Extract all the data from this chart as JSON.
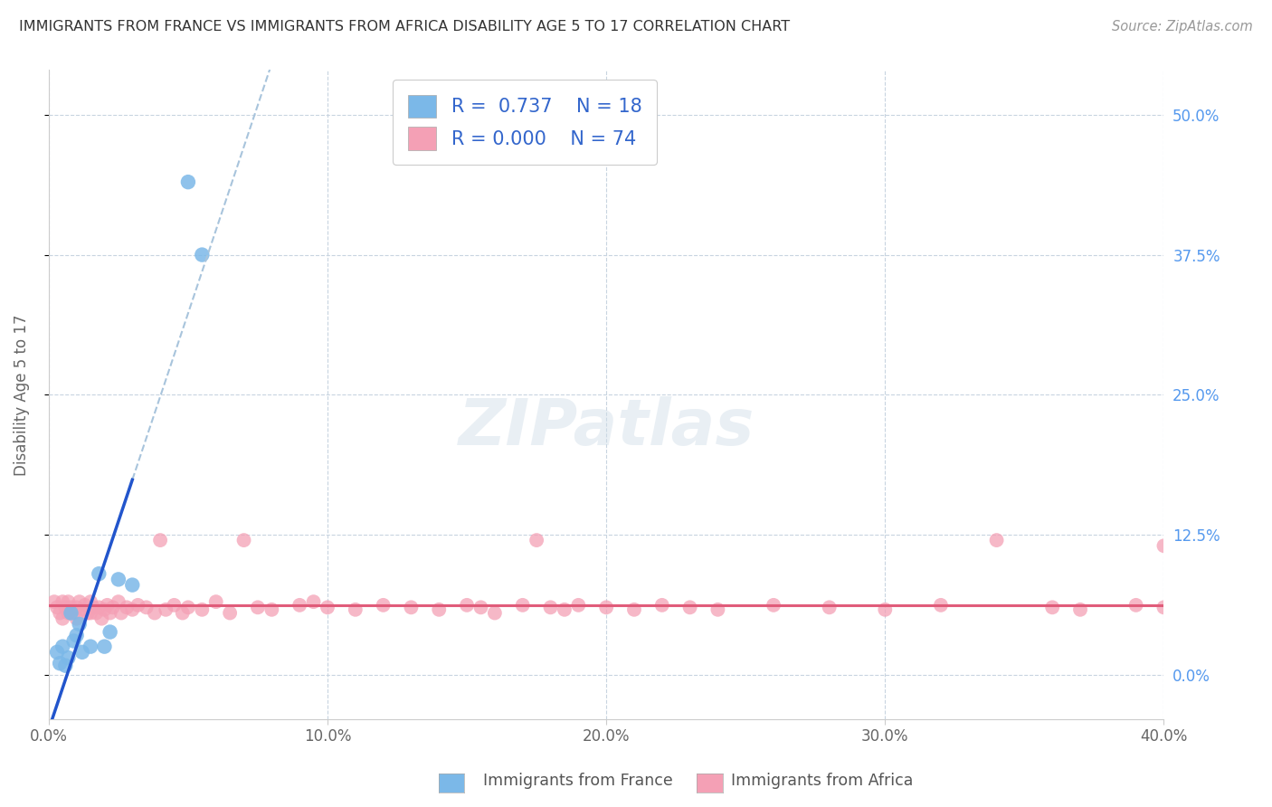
{
  "title": "IMMIGRANTS FROM FRANCE VS IMMIGRANTS FROM AFRICA DISABILITY AGE 5 TO 17 CORRELATION CHART",
  "source": "Source: ZipAtlas.com",
  "ylabel": "Disability Age 5 to 17",
  "xlim": [
    0.0,
    0.4
  ],
  "ylim": [
    -0.04,
    0.54
  ],
  "xtick_vals": [
    0.0,
    0.1,
    0.2,
    0.3,
    0.4
  ],
  "ytick_vals": [
    0.0,
    0.125,
    0.25,
    0.375,
    0.5
  ],
  "france_R": "0.737",
  "france_N": "18",
  "africa_R": "0.000",
  "africa_N": "74",
  "france_color": "#7bb8e8",
  "africa_color": "#f4a0b5",
  "france_line_color": "#2255cc",
  "africa_line_color": "#e05c7a",
  "trendline_dashed_color": "#a8c4dc",
  "grid_color": "#c8d4e0",
  "background_color": "#ffffff",
  "legend_france_text_color": "#3366cc",
  "legend_africa_text_color": "#cc3366",
  "right_tick_color": "#5599ee",
  "france_points_x": [
    0.003,
    0.004,
    0.005,
    0.006,
    0.007,
    0.008,
    0.009,
    0.01,
    0.011,
    0.012,
    0.015,
    0.018,
    0.02,
    0.022,
    0.025,
    0.03,
    0.05,
    0.055
  ],
  "france_points_y": [
    0.02,
    0.01,
    0.025,
    0.008,
    0.015,
    0.055,
    0.03,
    0.035,
    0.045,
    0.02,
    0.025,
    0.09,
    0.025,
    0.038,
    0.085,
    0.08,
    0.44,
    0.375
  ],
  "africa_points_x": [
    0.002,
    0.003,
    0.004,
    0.005,
    0.005,
    0.006,
    0.007,
    0.007,
    0.008,
    0.009,
    0.01,
    0.01,
    0.011,
    0.012,
    0.013,
    0.014,
    0.015,
    0.015,
    0.016,
    0.017,
    0.018,
    0.019,
    0.02,
    0.021,
    0.022,
    0.023,
    0.025,
    0.026,
    0.028,
    0.03,
    0.032,
    0.035,
    0.038,
    0.04,
    0.042,
    0.045,
    0.048,
    0.05,
    0.055,
    0.06,
    0.065,
    0.07,
    0.075,
    0.08,
    0.09,
    0.095,
    0.1,
    0.11,
    0.12,
    0.13,
    0.14,
    0.15,
    0.155,
    0.16,
    0.17,
    0.175,
    0.18,
    0.185,
    0.19,
    0.2,
    0.21,
    0.22,
    0.23,
    0.24,
    0.26,
    0.28,
    0.3,
    0.32,
    0.34,
    0.36,
    0.37,
    0.39,
    0.4,
    0.4
  ],
  "africa_points_y": [
    0.065,
    0.06,
    0.055,
    0.065,
    0.05,
    0.06,
    0.065,
    0.055,
    0.06,
    0.055,
    0.06,
    0.05,
    0.065,
    0.058,
    0.062,
    0.055,
    0.065,
    0.055,
    0.06,
    0.055,
    0.06,
    0.05,
    0.058,
    0.062,
    0.055,
    0.06,
    0.065,
    0.055,
    0.06,
    0.058,
    0.062,
    0.06,
    0.055,
    0.12,
    0.058,
    0.062,
    0.055,
    0.06,
    0.058,
    0.065,
    0.055,
    0.12,
    0.06,
    0.058,
    0.062,
    0.065,
    0.06,
    0.058,
    0.062,
    0.06,
    0.058,
    0.062,
    0.06,
    0.055,
    0.062,
    0.12,
    0.06,
    0.058,
    0.062,
    0.06,
    0.058,
    0.062,
    0.06,
    0.058,
    0.062,
    0.06,
    0.058,
    0.062,
    0.12,
    0.06,
    0.058,
    0.062,
    0.115,
    0.06
  ]
}
